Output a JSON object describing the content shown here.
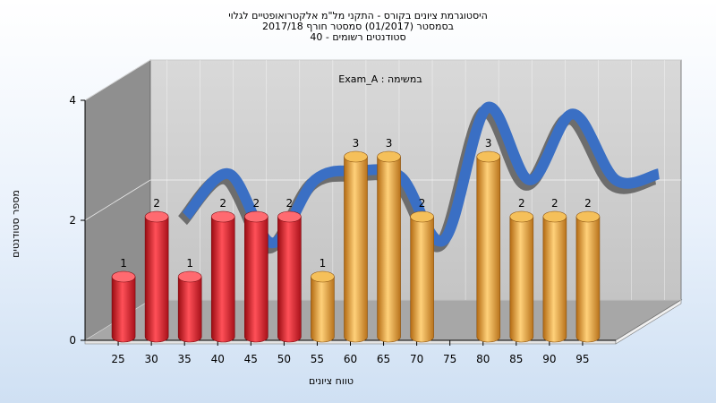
{
  "chart_data": {
    "type": "bar",
    "title_lines": [
      "היסטוגרמת ציונים בקורס - התקני מל\"מ אלקטרואופטיים לגלוי",
      "בסמסטר  (01/2017)  סמסטר חורף  2017/18",
      "סטודנטים רשומים - 40"
    ],
    "subtitle": "",
    "annotation": "Exam_A : במשימה",
    "xlabel": "טווח ציונים",
    "ylabel": "מספר סטודנטים",
    "categories": [
      "25",
      "30",
      "35",
      "40",
      "45",
      "50",
      "55",
      "60",
      "65",
      "70",
      "75",
      "80",
      "85",
      "90",
      "95"
    ],
    "series": [
      {
        "values": [
          1,
          2,
          1,
          2,
          2,
          2,
          1,
          3,
          3,
          2,
          0,
          3,
          2,
          2,
          2
        ]
      }
    ],
    "bar_labels": [
      "1",
      "2",
      "1",
      "2",
      "2",
      "2",
      "1",
      "3",
      "3",
      "2",
      "",
      "3",
      "2",
      "2",
      "2"
    ],
    "curve": [
      1.7,
      2.4,
      1.25,
      2.3,
      2.45,
      2.35,
      1.3,
      3.5,
      2.3,
      3.4,
      2.3,
      2.4
    ],
    "y_ticks": [
      0,
      2,
      4
    ],
    "ylim": [
      0,
      4
    ],
    "grid": true,
    "colors": {
      "fail": "#e0262e",
      "pass": "#e6a03a",
      "curve": "#3a6fc4",
      "curve_shadow": "#6d6d6d",
      "back_wall": "#cfcfcf",
      "side_wall": "#8f8f8f",
      "floor": "#a7a7a7"
    },
    "pass_threshold": 55
  }
}
